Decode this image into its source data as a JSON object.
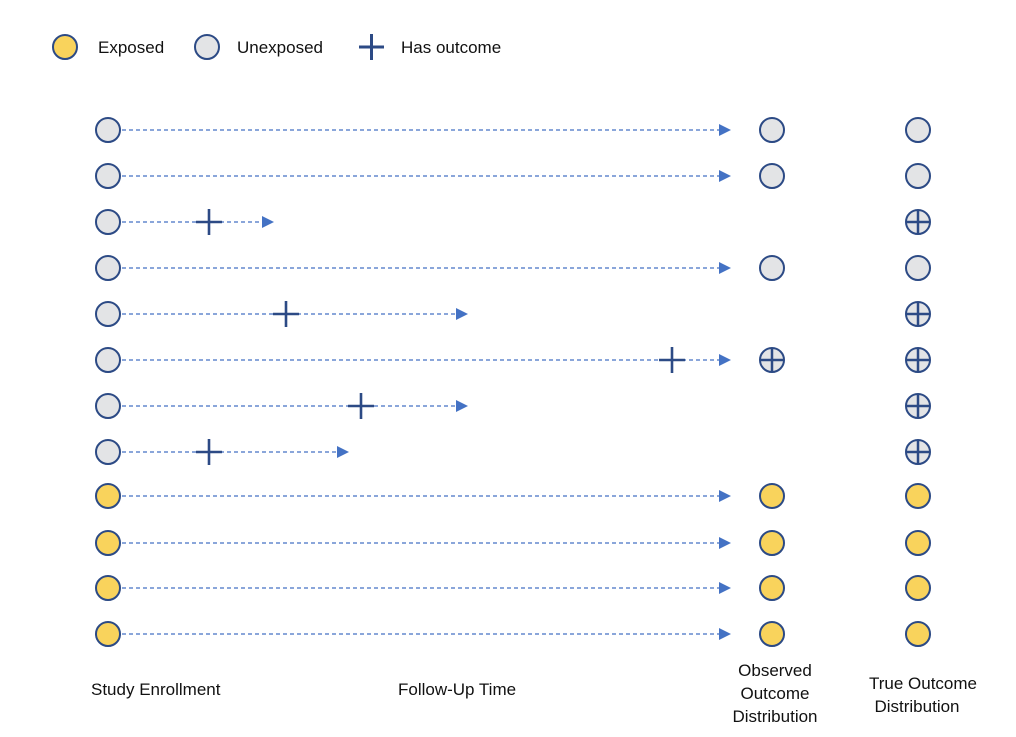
{
  "legend": {
    "exposed": "Exposed",
    "unexposed": "Unexposed",
    "has_outcome": "Has outcome"
  },
  "labels": {
    "study_enrollment": "Study Enrollment",
    "follow_up_time": "Follow-Up Time",
    "observed": [
      "Observed",
      "Outcome",
      "Distribution"
    ],
    "true_dist": [
      "True Outcome",
      "Distribution"
    ]
  },
  "colors": {
    "exposed_fill": "#F9D35C",
    "unexposed_fill": "#E3E4E6",
    "stroke": "#2C4A85",
    "arrow": "#4472C4"
  },
  "subjects": [
    {
      "status": "unexposed",
      "outcome": false,
      "censored": false
    },
    {
      "status": "unexposed",
      "outcome": false,
      "censored": false
    },
    {
      "status": "unexposed",
      "outcome": true,
      "censored": true
    },
    {
      "status": "unexposed",
      "outcome": false,
      "censored": false
    },
    {
      "status": "unexposed",
      "outcome": true,
      "censored": true
    },
    {
      "status": "unexposed",
      "outcome": true,
      "censored": false
    },
    {
      "status": "unexposed",
      "outcome": true,
      "censored": true
    },
    {
      "status": "unexposed",
      "outcome": true,
      "censored": true
    },
    {
      "status": "exposed",
      "outcome": false,
      "censored": false
    },
    {
      "status": "exposed",
      "outcome": false,
      "censored": false
    },
    {
      "status": "exposed",
      "outcome": false,
      "censored": false
    },
    {
      "status": "exposed",
      "outcome": false,
      "censored": false
    }
  ]
}
